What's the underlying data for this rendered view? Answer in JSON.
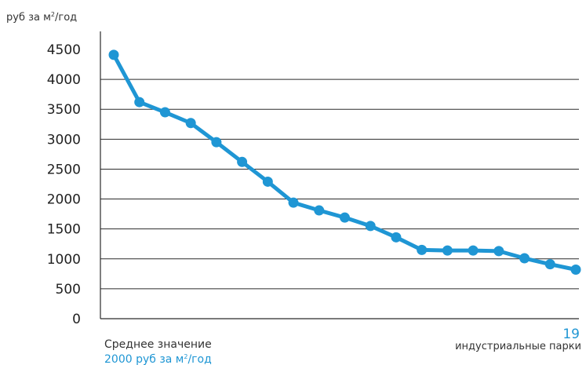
{
  "chart_data": {
    "type": "line",
    "unit_label": {
      "prefix": "руб за м",
      "sup": "2",
      "suffix": "/год"
    },
    "ylim": [
      0,
      4500
    ],
    "yticks": [
      0,
      500,
      1000,
      1500,
      2000,
      2500,
      3000,
      3500,
      4000,
      4500
    ],
    "ytick_labels": [
      "0",
      "500",
      "1000",
      "1500",
      "2000",
      "2500",
      "3000",
      "3500",
      "4000",
      "4500"
    ],
    "x": [
      1,
      2,
      3,
      4,
      5,
      6,
      7,
      8,
      9,
      10,
      11,
      12,
      13,
      14,
      15,
      16,
      17,
      18,
      19
    ],
    "series": [
      {
        "values": [
          4410,
          3620,
          3450,
          3270,
          2950,
          2620,
          2290,
          1940,
          1810,
          1690,
          1550,
          1360,
          1150,
          1140,
          1140,
          1130,
          1010,
          910,
          820
        ]
      }
    ],
    "grid": true,
    "average": {
      "title": "Среднее значение",
      "value_prefix": "2000 руб за м",
      "value_sup": "2",
      "value_suffix": "/год"
    },
    "count": {
      "value": "19",
      "label": "индустриальные парки"
    },
    "colors": {
      "series": "#1F96D4",
      "accent": "#1F96D4",
      "text": "#333333",
      "grid": "#2B2B2B"
    }
  }
}
